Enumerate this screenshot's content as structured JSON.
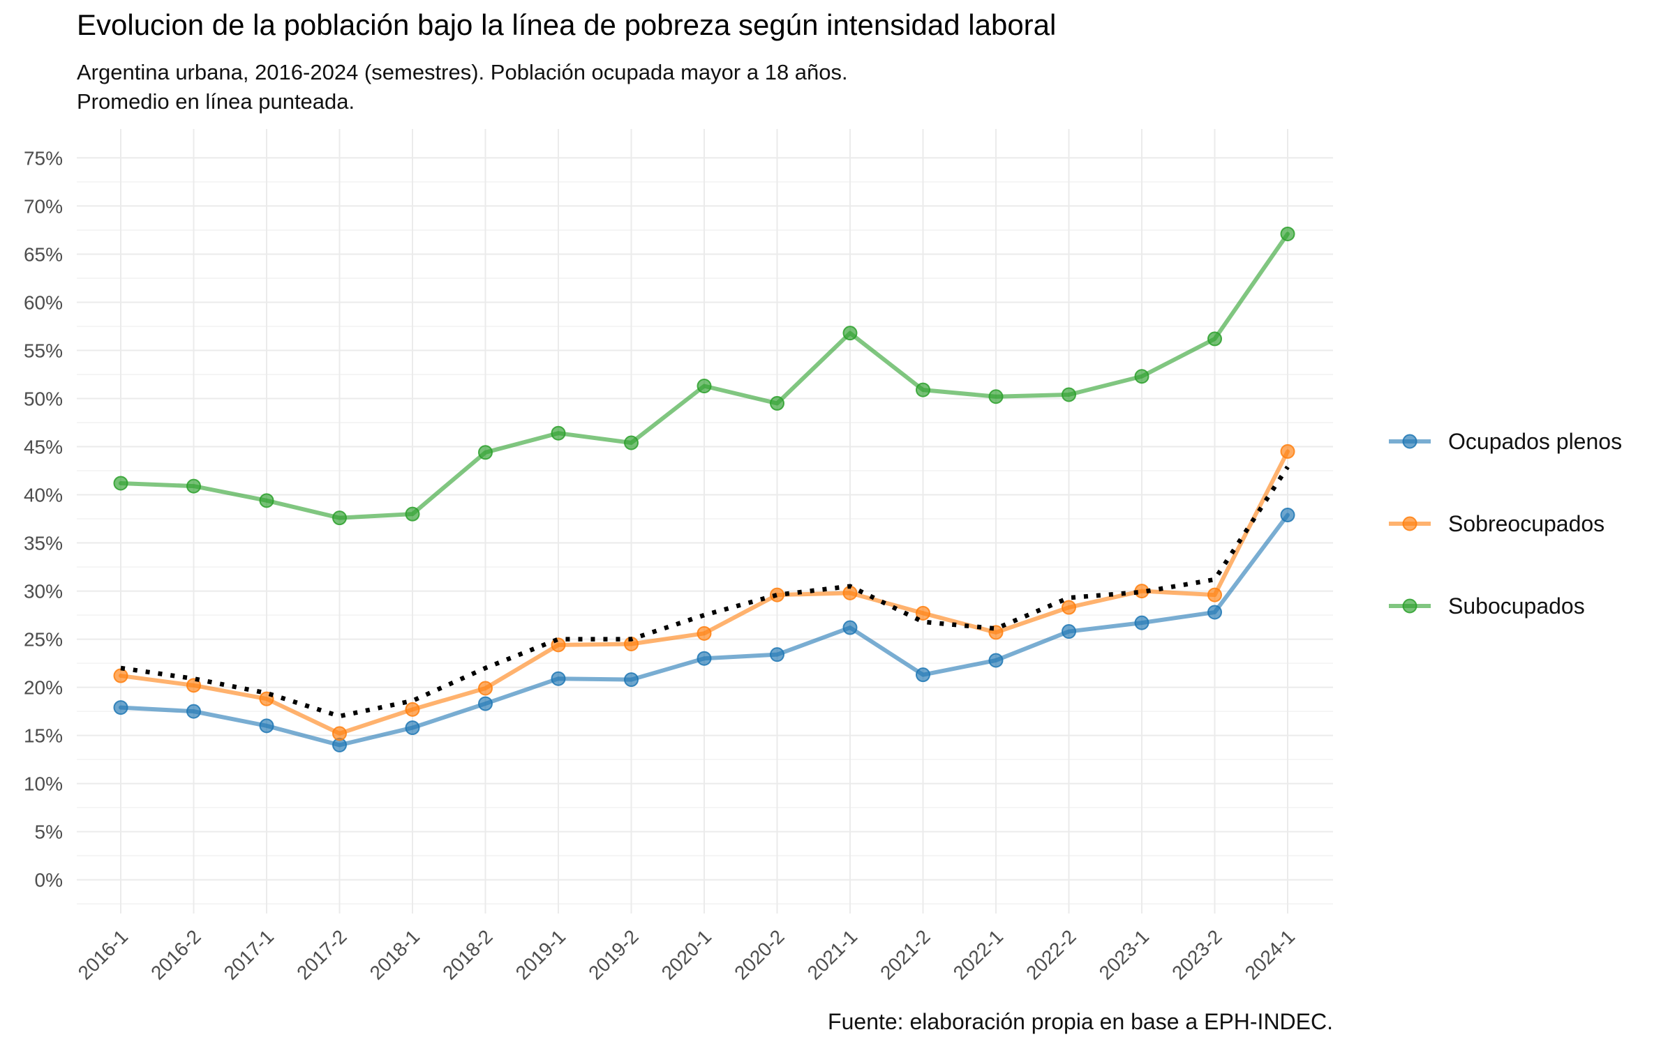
{
  "chart_data": {
    "type": "line",
    "title": "Evolucion de la población bajo la línea de pobreza según intensidad laboral",
    "subtitle_lines": [
      "Argentina urbana, 2016-2024 (semestres). Población ocupada mayor a 18 años.",
      "Promedio en línea punteada."
    ],
    "caption": "Fuente: elaboración propia en base a EPH-INDEC.",
    "xlabel": "",
    "ylabel": "",
    "categories": [
      "2016-1",
      "2016-2",
      "2017-1",
      "2017-2",
      "2018-1",
      "2018-2",
      "2019-1",
      "2019-2",
      "2020-1",
      "2020-2",
      "2021-1",
      "2021-2",
      "2022-1",
      "2022-2",
      "2023-1",
      "2023-2",
      "2024-1"
    ],
    "ylim": [
      -3.5,
      78
    ],
    "yticks": [
      0,
      5,
      10,
      15,
      20,
      25,
      30,
      35,
      40,
      45,
      50,
      55,
      60,
      65,
      70,
      75
    ],
    "ytick_labels": [
      "0%",
      "5%",
      "10%",
      "15%",
      "20%",
      "25%",
      "30%",
      "35%",
      "40%",
      "45%",
      "50%",
      "55%",
      "60%",
      "65%",
      "70%",
      "75%"
    ],
    "grid": true,
    "legend_position": "right",
    "series": [
      {
        "name": "Ocupados plenos",
        "color": "#1f77b4",
        "values": [
          17.9,
          17.5,
          16.0,
          14.0,
          15.8,
          18.3,
          20.9,
          20.8,
          23.0,
          23.4,
          26.2,
          21.3,
          22.8,
          25.8,
          26.7,
          27.8,
          37.9
        ]
      },
      {
        "name": "Sobreocupados",
        "color": "#ff7f0e",
        "values": [
          21.2,
          20.2,
          18.8,
          15.2,
          17.7,
          19.9,
          24.4,
          24.5,
          25.6,
          29.6,
          29.8,
          27.7,
          25.7,
          28.3,
          30.0,
          29.6,
          44.5
        ]
      },
      {
        "name": "Subocupados",
        "color": "#2ca02c",
        "values": [
          41.2,
          40.9,
          39.4,
          37.6,
          38.0,
          44.4,
          46.4,
          45.4,
          51.3,
          49.5,
          56.8,
          50.9,
          50.2,
          50.4,
          52.3,
          56.2,
          67.1
        ]
      }
    ],
    "average": {
      "name": "Promedio",
      "color": "#000000",
      "style": "dotted",
      "values": [
        22.0,
        20.9,
        19.4,
        17.0,
        18.6,
        22.0,
        25.0,
        25.0,
        27.5,
        29.6,
        30.5,
        26.8,
        26.1,
        29.3,
        29.9,
        31.2,
        42.9
      ]
    }
  }
}
